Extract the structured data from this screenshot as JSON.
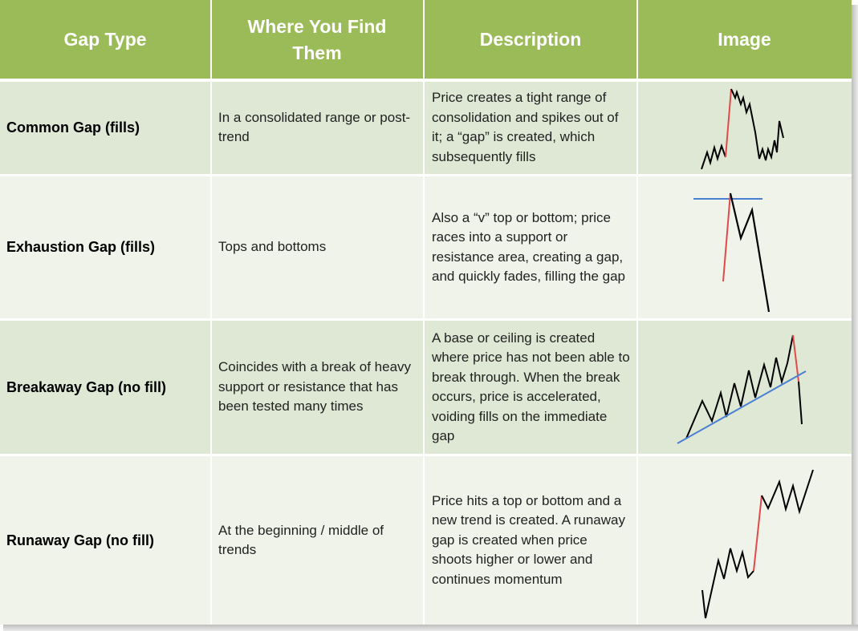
{
  "headers": {
    "gap_type": "Gap Type",
    "where_line1": "Where You Find",
    "where_line2": "Them",
    "description": "Description",
    "image": "Image"
  },
  "rows": [
    {
      "type": "Common Gap (fills)",
      "where": "In a consolidated range or post-trend",
      "description": "Price creates a tight range of consolidation and spikes out of it; a “gap” is created, which subsequently fills"
    },
    {
      "type": "Exhaustion Gap (fills)",
      "where": "Tops and bottoms",
      "description": "Also a “v” top or bottom; price races into a support or resistance area, creating a gap, and quickly fades, filling the gap"
    },
    {
      "type": "Breakaway Gap (no fill)",
      "where": "Coincides with a break of heavy support or resistance that has been tested many times",
      "description": "A base or ceiling is created where price has not been able to break through.  When the break occurs, price is accelerated, voiding fills on the immediate gap"
    },
    {
      "type": "Runaway Gap (no fill)",
      "where": "At the beginning / middle of trends",
      "description": "Price hits a top or bottom and a new trend is created. A runaway gap is created when price shoots higher or lower and continues momentum"
    }
  ],
  "colors": {
    "header": "#9bbb59",
    "row_dark": "#dfe8d4",
    "row_light": "#eff3ea",
    "price_line": "#000000",
    "gap_line": "#e04a4a",
    "level_line": "#4a7fd4"
  },
  "icons": [
    "common-gap-sketch",
    "exhaustion-gap-sketch",
    "breakaway-gap-sketch",
    "runaway-gap-sketch"
  ]
}
